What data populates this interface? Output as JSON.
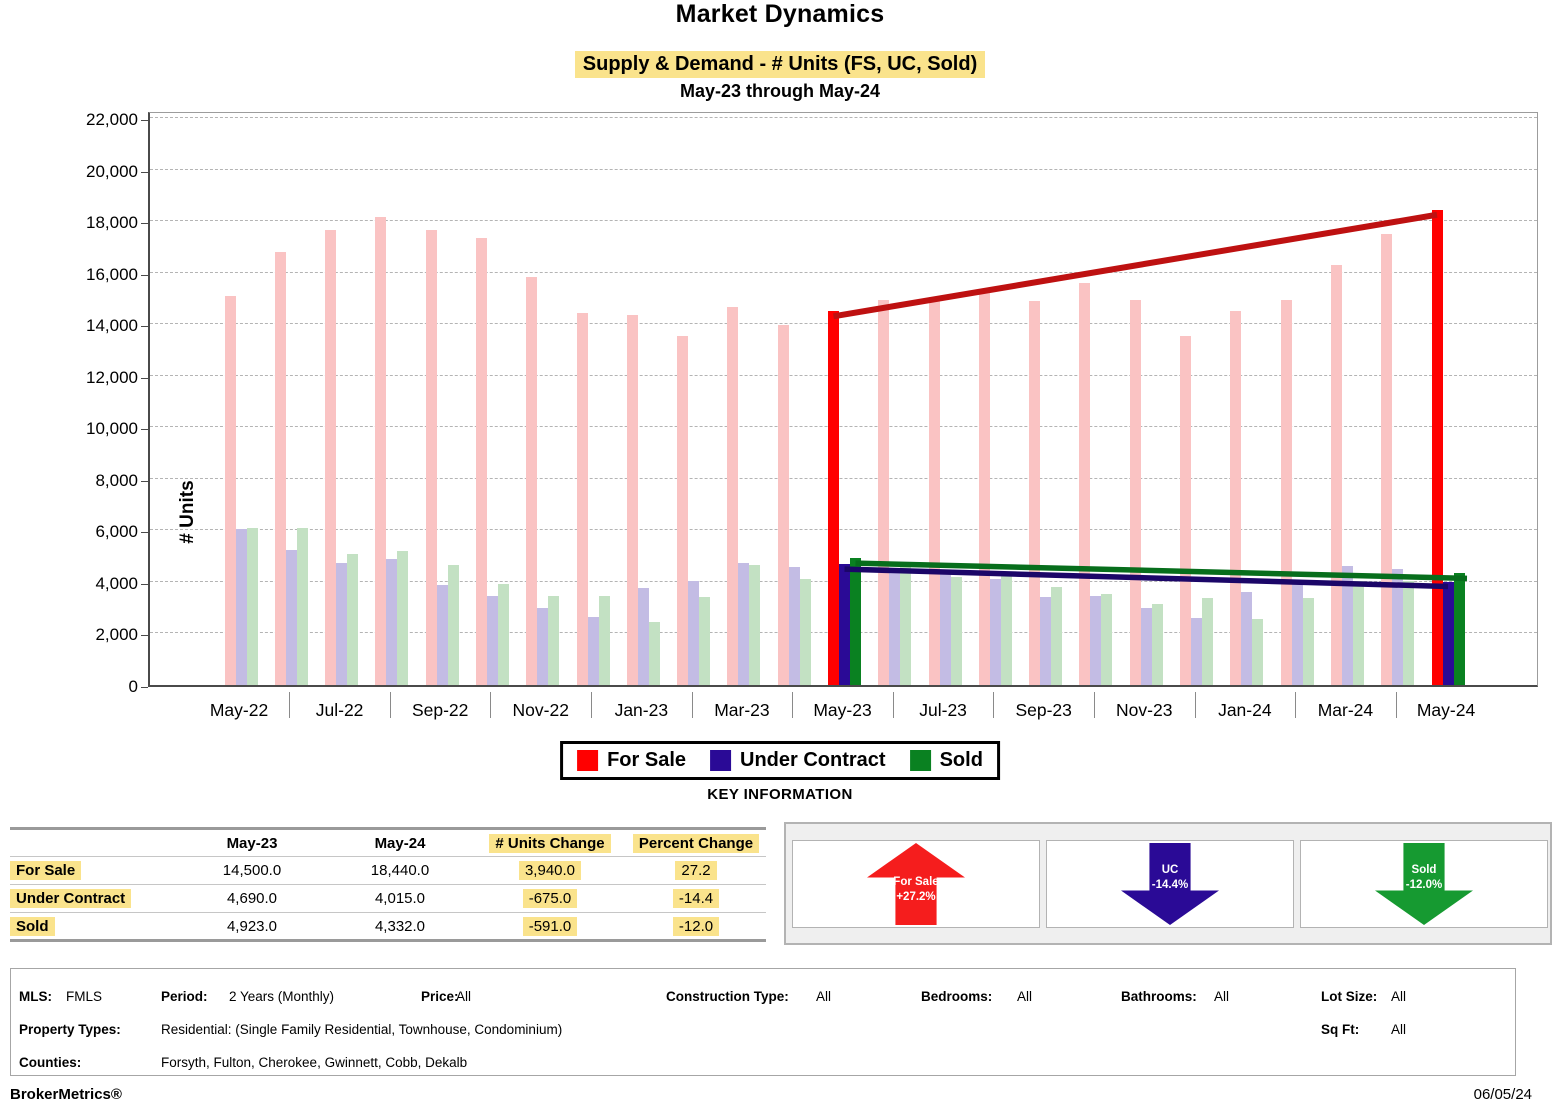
{
  "theme": {
    "highlight_yellow": "#FAE38C"
  },
  "header": {
    "title": "Market Dynamics",
    "subtitle": "Supply & Demand - # Units (FS, UC, Sold)",
    "period_line": "May-23 through May-24"
  },
  "chart_data": {
    "type": "bar",
    "title": "Market Dynamics - Supply & Demand - # Units (FS, UC, Sold)",
    "ylabel": "# Units",
    "xlabel": "",
    "ylim": [
      0,
      22000
    ],
    "ytick_step": 2000,
    "grid": "horizontal-dashed",
    "legend_position": "bottom",
    "categories": [
      "May-22",
      "Jun-22",
      "Jul-22",
      "Aug-22",
      "Sep-22",
      "Oct-22",
      "Nov-22",
      "Dec-22",
      "Jan-23",
      "Feb-23",
      "Mar-23",
      "Apr-23",
      "May-23",
      "Jun-23",
      "Jul-23",
      "Aug-23",
      "Sep-23",
      "Oct-23",
      "Nov-23",
      "Dec-23",
      "Jan-24",
      "Feb-24",
      "Mar-24",
      "Apr-24",
      "May-24"
    ],
    "xtick_labels_shown": [
      "May-22",
      "Jul-22",
      "Sep-22",
      "Nov-22",
      "Jan-23",
      "Mar-23",
      "May-23",
      "Jul-23",
      "Sep-23",
      "Nov-23",
      "Jan-24",
      "Mar-24",
      "May-24"
    ],
    "highlight_indices": [
      12,
      24
    ],
    "trend_lines": {
      "from_index": 12,
      "to_index": 24
    },
    "series": [
      {
        "name": "For Sale",
        "values": [
          15100,
          16800,
          17650,
          18150,
          17650,
          17350,
          15850,
          14450,
          14350,
          13550,
          14650,
          13950,
          14500,
          14950,
          15050,
          15200,
          14900,
          15600,
          14950,
          13550,
          14500,
          14950,
          16300,
          17500,
          18440
        ],
        "color_normal": "#FAC3C3",
        "color_highlight": "#FF0000",
        "trend_color": "#BE1111"
      },
      {
        "name": "Under Contract",
        "values": [
          6050,
          5250,
          4750,
          4900,
          3900,
          3470,
          3000,
          2620,
          3760,
          4040,
          4740,
          4580,
          4690,
          4500,
          4300,
          4100,
          3430,
          3450,
          2970,
          2600,
          3600,
          3920,
          4620,
          4500,
          4015
        ],
        "color_normal": "#C3BCE4",
        "color_highlight": "#2A0A96",
        "trend_color": "#1B0668"
      },
      {
        "name": "Sold",
        "values": [
          6100,
          6100,
          5100,
          5190,
          4670,
          3930,
          3470,
          3440,
          2450,
          3410,
          4670,
          4120,
          4923,
          4590,
          4200,
          4400,
          3820,
          3520,
          3160,
          3360,
          2575,
          3390,
          4040,
          4050,
          4332
        ],
        "color_normal": "#C3E1C3",
        "color_highlight": "#0A8121",
        "trend_color": "#076E1C"
      }
    ]
  },
  "legend": {
    "items": [
      {
        "label": "For Sale",
        "color": "#FF0000"
      },
      {
        "label": "Under Contract",
        "color": "#2A0A96"
      },
      {
        "label": "Sold",
        "color": "#0A8121"
      }
    ]
  },
  "key_information": {
    "heading": "KEY INFORMATION",
    "table": {
      "columns": [
        "",
        "May-23",
        "May-24",
        "# Units Change",
        "Percent Change"
      ],
      "rows": [
        [
          "For Sale",
          "14,500.0",
          "18,440.0",
          "3,940.0",
          "27.2"
        ],
        [
          "Under Contract",
          "4,690.0",
          "4,015.0",
          "-675.0",
          "-14.4"
        ],
        [
          "Sold",
          "4,923.0",
          "4,332.0",
          "-591.0",
          "-12.0"
        ]
      ]
    },
    "indicators": [
      {
        "name": "For Sale",
        "value": "+27.2%",
        "direction": "up",
        "color": "#F51D1D"
      },
      {
        "name": "UC",
        "value": "-14.4%",
        "direction": "down",
        "color": "#2A0A96"
      },
      {
        "name": "Sold",
        "value": "-12.0%",
        "direction": "down",
        "color": "#169A31"
      }
    ]
  },
  "filters": {
    "row1": [
      {
        "label": "MLS:",
        "value": "FMLS"
      },
      {
        "label": "Period:",
        "value": "2 Years (Monthly)"
      },
      {
        "label": "Price:",
        "value": "All"
      },
      {
        "label": "Construction Type:",
        "value": "All"
      },
      {
        "label": "Bedrooms:",
        "value": "All"
      },
      {
        "label": "Bathrooms:",
        "value": "All"
      },
      {
        "label": "Lot Size:",
        "value": "All"
      }
    ],
    "row2": [
      {
        "label": "Property Types:",
        "value": "Residential: (Single Family Residential, Townhouse, Condominium)"
      },
      {
        "label": "Sq Ft:",
        "value": "All"
      }
    ],
    "row3": [
      {
        "label": "Counties:",
        "value": "Forsyth, Fulton, Cherokee, Gwinnett, Cobb, Dekalb"
      }
    ]
  },
  "footer": {
    "brand": "BrokerMetrics®",
    "date": "06/05/24"
  }
}
